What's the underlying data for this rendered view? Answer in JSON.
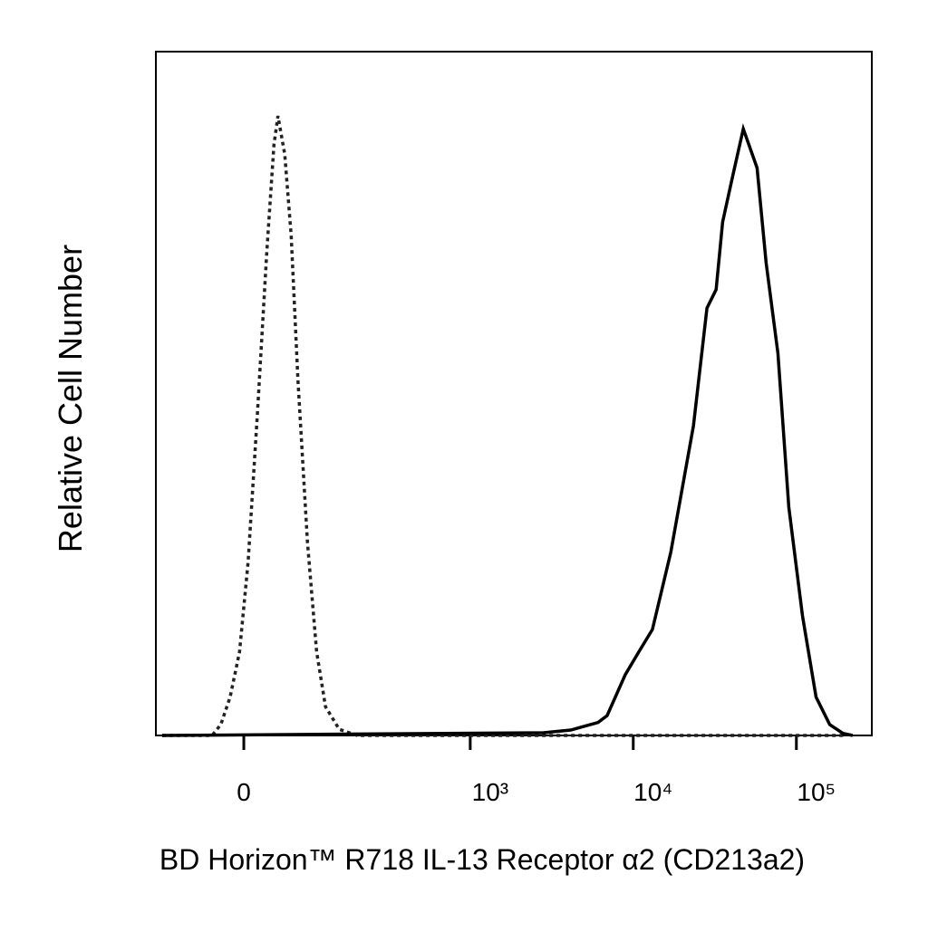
{
  "chart_data": {
    "type": "line",
    "x_label": "BD Horizon™ R718 IL-13 Receptor α2 (CD213a2)",
    "y_label": "Relative Cell Number",
    "xscale": "biexponential",
    "xlim": [
      -130,
      290000
    ],
    "ylim": [
      0,
      100
    ],
    "xticks": [
      0,
      {
        "value": 1000,
        "label": "10³"
      },
      {
        "value": 10000,
        "label": "10⁴"
      },
      {
        "value": 100000,
        "label": "10⁵"
      }
    ],
    "series": [
      {
        "color": "#222222",
        "style": "dotted",
        "x": [
          -117,
          -38,
          -27,
          -16,
          -5,
          5,
          16,
          27,
          36,
          41,
          50,
          59,
          69,
          84,
          100,
          117,
          147,
          195,
          193000
        ],
        "values": [
          0,
          0,
          1.6,
          5.6,
          12.2,
          25.4,
          47.4,
          70.5,
          86.4,
          90.6,
          85,
          73.1,
          51.9,
          28.2,
          12.2,
          4.2,
          0.9,
          0,
          0
        ]
      },
      {
        "color": "#000000",
        "style": "solid",
        "x": [
          -117,
          2820,
          4140,
          6080,
          6910,
          8940,
          10800,
          13100,
          17000,
          23400,
          28300,
          32200,
          35300,
          40600,
          47300,
          57400,
          65300,
          77100,
          89900,
          109000,
          132000,
          160000,
          193000,
          221000
        ],
        "values": [
          0,
          0.4,
          0.8,
          1.9,
          2.9,
          8.9,
          12.2,
          15.5,
          26.8,
          45.3,
          62.5,
          65.2,
          75.1,
          81.7,
          88.7,
          83,
          69.1,
          55.9,
          33.4,
          17.5,
          5.6,
          1.6,
          0.3,
          0
        ]
      }
    ]
  }
}
